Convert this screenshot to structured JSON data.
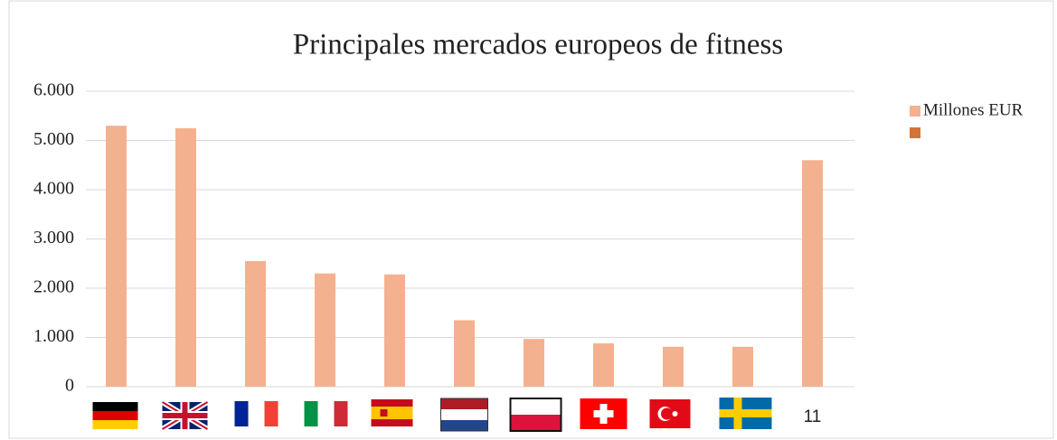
{
  "chart_data": {
    "type": "bar",
    "title": "Principales mercados europeos de fitness",
    "categories": [
      null,
      null,
      null,
      null,
      null,
      null,
      null,
      null,
      null,
      null,
      "11"
    ],
    "series": [
      {
        "name": "Millones EUR",
        "color": "#f4b18f",
        "values": [
          5300,
          5250,
          2550,
          2300,
          2280,
          1350,
          970,
          880,
          810,
          810,
          4600
        ]
      },
      {
        "name": null,
        "color": "#d4733a",
        "values": [
          null,
          null,
          null,
          null,
          null,
          null,
          null,
          null,
          null,
          null,
          null
        ]
      }
    ],
    "ylim": [
      0,
      6000
    ],
    "yticks": [
      0,
      {
        "value": 1000,
        "label": "1.000"
      },
      {
        "value": 2000,
        "label": "2.000"
      },
      {
        "value": 3000,
        "label": "3.000"
      },
      {
        "value": 4000,
        "label": "4.000"
      },
      {
        "value": 5000,
        "label": "5.000"
      },
      {
        "value": 6000,
        "label": "6.000"
      }
    ],
    "grid": true,
    "legend": "right"
  }
}
